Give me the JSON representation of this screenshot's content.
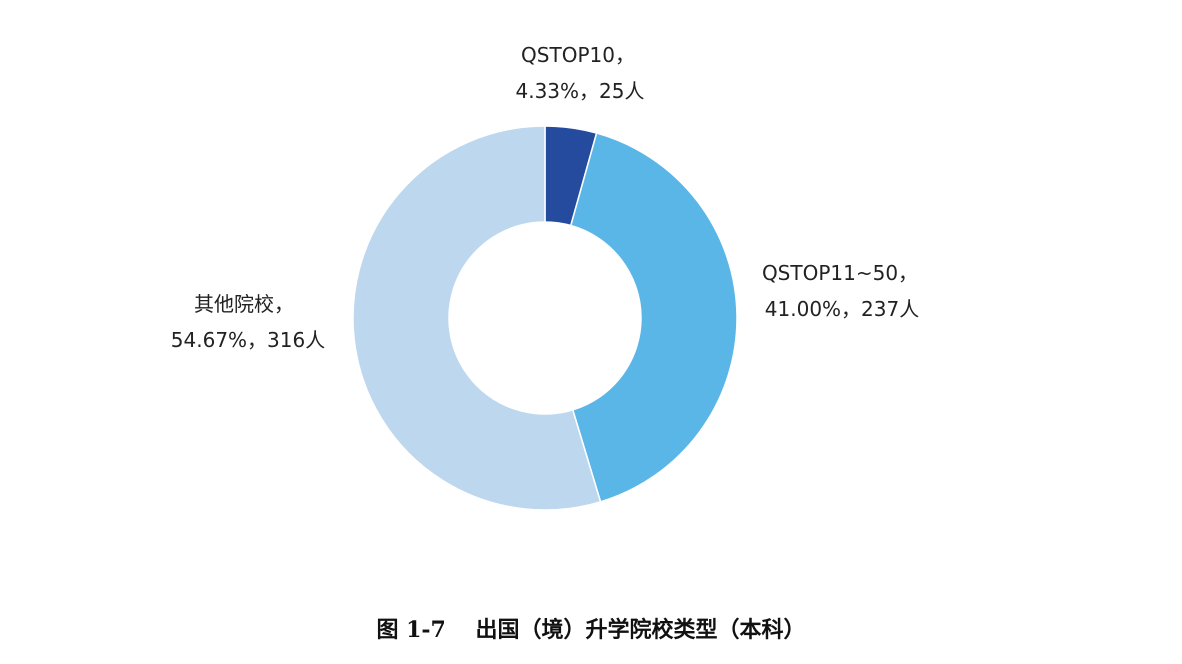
{
  "chart_data": {
    "type": "pie",
    "variant": "donut",
    "start_angle": "12 o'clock",
    "direction": "clockwise",
    "slices": [
      {
        "label": "QSTOP10",
        "percent": 4.33,
        "value": 25,
        "color": "#244B9E",
        "label_line1": "QSTOP10，",
        "label_line2": "4.33%，25人"
      },
      {
        "label": "QSTOP11~50",
        "percent": 41.0,
        "value": 237,
        "color": "#5BB6E8",
        "label_line1": "QSTOP11~50，",
        "label_line2": "41.00%，237人"
      },
      {
        "label": "其他院校",
        "percent": 54.67,
        "value": 316,
        "color": "#BDD7EE",
        "label_line1": "其他院校，",
        "label_line2": "54.67%，316人"
      }
    ],
    "caption": "图 1-7　 出国（境）升学院校类型（本科）"
  }
}
